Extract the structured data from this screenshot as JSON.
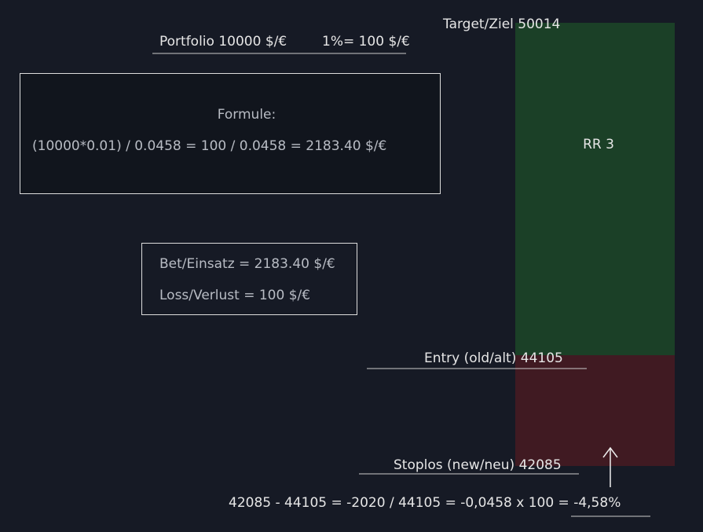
{
  "portfolio": {
    "label": "Portfolio 10000 $/€",
    "risk": "1%= 100 $/€"
  },
  "target": "Target/Ziel 50014",
  "ratio": "RR 3",
  "formula": {
    "title": "Formule:",
    "text": "(10000*0.01) / 0.0458 = 100 / 0.0458 = 2183.40 $/€"
  },
  "bet": {
    "stake": "Bet/Einsatz = 2183.40  $/€",
    "loss": "Loss/Verlust = 100 $/€"
  },
  "entry": "Entry (old/alt) 44105",
  "stop": "Stoplos (new/neu) 42085",
  "calc": "42085 - 44105 = -2020 / 44105 = -0,0458 x 100 = -4,58%"
}
